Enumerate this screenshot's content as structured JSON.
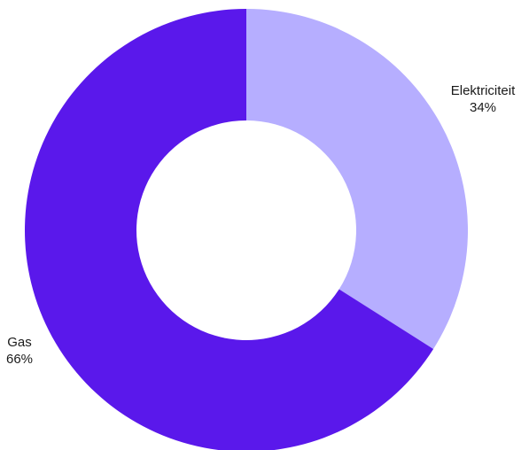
{
  "chart_data": {
    "type": "pie",
    "donut": true,
    "title": "",
    "categories": [
      "Elektriciteit",
      "Gas"
    ],
    "values": [
      34,
      66
    ],
    "value_labels": [
      "34%",
      "66%"
    ],
    "colors": [
      "#b6aeff",
      "#5a18eb"
    ],
    "legend": "none",
    "grid": false,
    "start_angle_deg": 0,
    "direction": "clockwise"
  }
}
